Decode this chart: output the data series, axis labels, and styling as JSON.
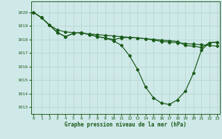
{
  "title": "Graphe pression niveau de la mer (hPa)",
  "bg_color": "#cfe8e8",
  "grid_color": "#b0d4cc",
  "line_color": "#1a5c1a",
  "x_ticks": [
    0,
    1,
    2,
    3,
    4,
    5,
    6,
    7,
    8,
    9,
    10,
    11,
    12,
    13,
    14,
    15,
    16,
    17,
    18,
    19,
    20,
    21,
    22,
    23
  ],
  "y_ticks": [
    1013,
    1014,
    1015,
    1016,
    1017,
    1018,
    1019,
    1020
  ],
  "ylim": [
    1012.5,
    1020.8
  ],
  "xlim": [
    -0.3,
    23.3
  ],
  "line_straight": [
    1020.0,
    1019.6,
    1019.05,
    1018.7,
    1018.55,
    1018.5,
    1018.45,
    1018.4,
    1018.35,
    1018.3,
    1018.25,
    1018.2,
    1018.15,
    1018.1,
    1018.05,
    1017.95,
    1017.85,
    1017.8,
    1017.75,
    1017.7,
    1017.65,
    1017.6,
    1017.55,
    1017.5
  ],
  "line_mid": [
    1020.0,
    1019.6,
    1019.05,
    1018.5,
    1018.2,
    1018.45,
    1018.5,
    1018.35,
    1018.2,
    1018.1,
    1018.0,
    1018.1,
    1018.15,
    1018.1,
    1018.05,
    1018.0,
    1017.95,
    1017.9,
    1017.85,
    1017.55,
    1017.5,
    1017.4,
    1017.75,
    1017.8
  ],
  "line_dip": [
    1020.0,
    1019.6,
    1019.05,
    1018.5,
    1018.2,
    1018.45,
    1018.5,
    1018.35,
    1018.2,
    1018.1,
    1017.9,
    1017.55,
    1016.8,
    1015.8,
    1014.5,
    1013.7,
    1013.3,
    1013.2,
    1013.55,
    1014.2,
    1015.5,
    1017.2,
    1017.75,
    1017.8
  ]
}
